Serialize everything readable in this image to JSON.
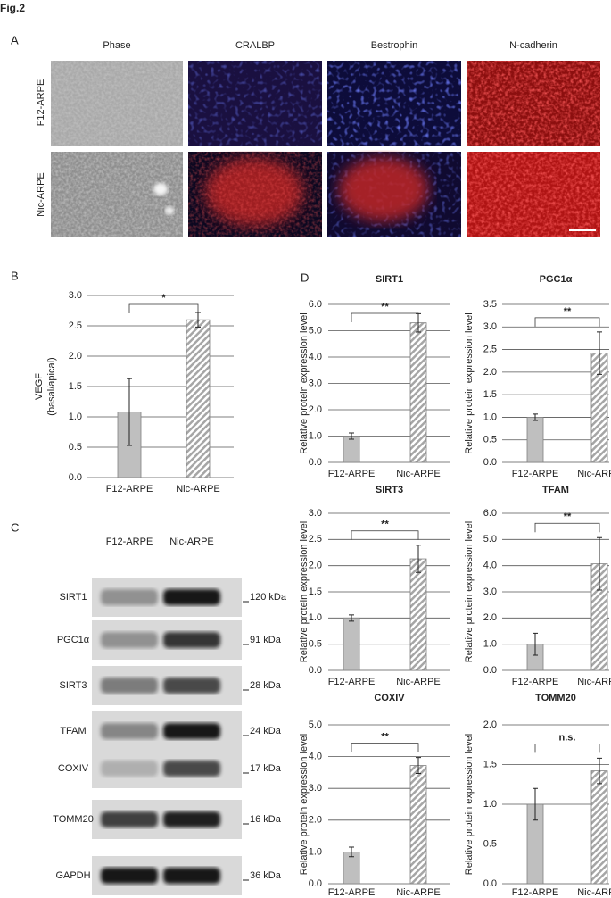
{
  "figure_label": "Fig.2",
  "panel_labels": [
    "A",
    "B",
    "C",
    "D"
  ],
  "panel_a": {
    "columns": [
      "Phase",
      "CRALBP",
      "Bestrophin",
      "N-cadherin"
    ],
    "rows": [
      "F12-ARPE",
      "Nic-ARPE"
    ]
  },
  "panel_c": {
    "lanes": [
      "F12-ARPE",
      "Nic-ARPE"
    ],
    "rows": [
      {
        "protein": "SIRT1",
        "size": "120 kDa"
      },
      {
        "protein": "PGC1α",
        "size": "91 kDa"
      },
      {
        "protein": "SIRT3",
        "size": "28 kDa"
      },
      {
        "protein": "TFAM",
        "size": "24 kDa"
      },
      {
        "protein": "COXIV",
        "size": "17 kDa"
      },
      {
        "protein": "TOMM20",
        "size": "16 kDa"
      },
      {
        "protein": "GAPDH",
        "size": "36 kDa"
      }
    ]
  },
  "chart_data": [
    {
      "type": "bar",
      "ylabel": [
        "VEGF",
        "(basal/apical)"
      ],
      "categories": [
        "F12-ARPE",
        "Nic-ARPE"
      ],
      "values": [
        1.08,
        2.6
      ],
      "errors": [
        0.55,
        0.12
      ],
      "colors": [
        "#bfbfbf",
        "#a6a6a6"
      ],
      "hatched": [
        false,
        true
      ],
      "ylim": [
        0,
        3
      ],
      "yticks": [
        {
          "value": 0,
          "label": "0.0"
        },
        0.5,
        {
          "value": 1,
          "label": "1.0"
        },
        1.5,
        {
          "value": 2,
          "label": "2.0"
        },
        2.5,
        {
          "value": 3,
          "label": "3.0"
        }
      ],
      "grid": true,
      "annotation": "*"
    },
    {
      "type": "bar",
      "title": "SIRT1",
      "ylabel": [
        "Relative protein expression level"
      ],
      "categories": [
        "F12-ARPE",
        "Nic-ARPE"
      ],
      "values": [
        1.0,
        5.3
      ],
      "errors": [
        0.12,
        0.35
      ],
      "colors": [
        "#bfbfbf",
        "#a6a6a6"
      ],
      "hatched": [
        false,
        true
      ],
      "ylim": [
        0,
        6
      ],
      "yticks": [
        {
          "value": 0,
          "label": "0.0"
        },
        {
          "value": 1,
          "label": "1.0"
        },
        {
          "value": 2,
          "label": "2.0"
        },
        {
          "value": 3,
          "label": "3.0"
        },
        {
          "value": 4,
          "label": "4.0"
        },
        {
          "value": 5,
          "label": "5.0"
        },
        {
          "value": 6,
          "label": "6.0"
        }
      ],
      "grid": true,
      "annotation": "**"
    },
    {
      "type": "bar",
      "title": "PGC1α",
      "ylabel": [
        "Relative protein expression level"
      ],
      "categories": [
        "F12-ARPE",
        "Nic-ARPE"
      ],
      "values": [
        1.0,
        2.42
      ],
      "errors": [
        0.07,
        0.47
      ],
      "colors": [
        "#bfbfbf",
        "#a6a6a6"
      ],
      "hatched": [
        false,
        true
      ],
      "ylim": [
        0,
        3.5
      ],
      "yticks": [
        {
          "value": 0,
          "label": "0.0"
        },
        0.5,
        {
          "value": 1,
          "label": "1.0"
        },
        1.5,
        {
          "value": 2,
          "label": "2.0"
        },
        2.5,
        {
          "value": 3,
          "label": "3.0"
        },
        3.5
      ],
      "grid": true,
      "annotation": "**"
    },
    {
      "type": "bar",
      "title": "SIRT3",
      "ylabel": [
        "Relative protein expression level"
      ],
      "categories": [
        "F12-ARPE",
        "Nic-ARPE"
      ],
      "values": [
        1.0,
        2.13
      ],
      "errors": [
        0.06,
        0.26
      ],
      "colors": [
        "#bfbfbf",
        "#a6a6a6"
      ],
      "hatched": [
        false,
        true
      ],
      "ylim": [
        0,
        3
      ],
      "yticks": [
        {
          "value": 0,
          "label": "0.0"
        },
        0.5,
        {
          "value": 1,
          "label": "1.0"
        },
        1.5,
        {
          "value": 2,
          "label": "2.0"
        },
        2.5,
        {
          "value": 3,
          "label": "3.0"
        }
      ],
      "grid": true,
      "annotation": "**"
    },
    {
      "type": "bar",
      "title": "TFAM",
      "ylabel": [
        "Relative protein expression level"
      ],
      "categories": [
        "F12-ARPE",
        "Nic-ARPE"
      ],
      "values": [
        1.0,
        4.07
      ],
      "errors": [
        0.42,
        1.0
      ],
      "colors": [
        "#bfbfbf",
        "#a6a6a6"
      ],
      "hatched": [
        false,
        true
      ],
      "ylim": [
        0,
        6
      ],
      "yticks": [
        {
          "value": 0,
          "label": "0.0"
        },
        {
          "value": 1,
          "label": "1.0"
        },
        {
          "value": 2,
          "label": "2.0"
        },
        {
          "value": 3,
          "label": "3.0"
        },
        {
          "value": 4,
          "label": "4.0"
        },
        {
          "value": 5,
          "label": "5.0"
        },
        {
          "value": 6,
          "label": "6.0"
        }
      ],
      "grid": true,
      "annotation": "**"
    },
    {
      "type": "bar",
      "title": "COXIV",
      "ylabel": [
        "Relative protein expression level"
      ],
      "categories": [
        "F12-ARPE",
        "Nic-ARPE"
      ],
      "values": [
        1.0,
        3.72
      ],
      "errors": [
        0.15,
        0.25
      ],
      "colors": [
        "#bfbfbf",
        "#a6a6a6"
      ],
      "hatched": [
        false,
        true
      ],
      "ylim": [
        0,
        5
      ],
      "yticks": [
        {
          "value": 0,
          "label": "0.0"
        },
        {
          "value": 1,
          "label": "1.0"
        },
        {
          "value": 2,
          "label": "2.0"
        },
        {
          "value": 3,
          "label": "3.0"
        },
        {
          "value": 4,
          "label": "4.0"
        },
        {
          "value": 5,
          "label": "5.0"
        }
      ],
      "grid": true,
      "annotation": "**"
    },
    {
      "type": "bar",
      "title": "TOMM20",
      "ylabel": [
        "Relative protein expression level"
      ],
      "categories": [
        "F12-ARPE",
        "Nic-ARPE"
      ],
      "values": [
        1.0,
        1.42
      ],
      "errors": [
        0.2,
        0.16
      ],
      "colors": [
        "#bfbfbf",
        "#a6a6a6"
      ],
      "hatched": [
        false,
        true
      ],
      "ylim": [
        0,
        2
      ],
      "yticks": [
        {
          "value": 0,
          "label": "0.0"
        },
        0.5,
        {
          "value": 1,
          "label": "1.0"
        },
        1.5,
        {
          "value": 2,
          "label": "2.0"
        }
      ],
      "grid": true,
      "annotation": "n.s."
    }
  ]
}
